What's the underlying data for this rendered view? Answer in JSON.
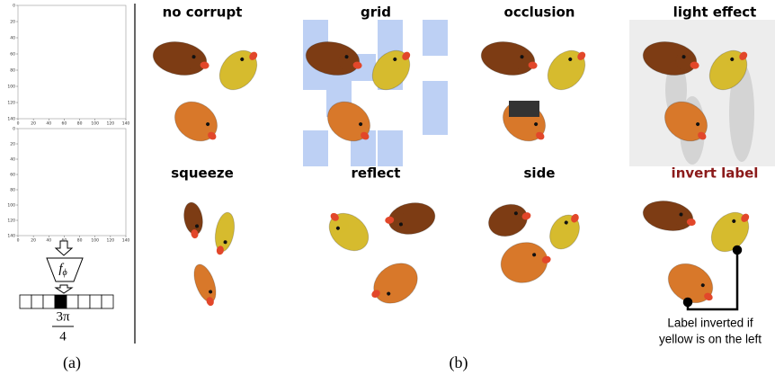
{
  "panel_a": {
    "label": "(a)",
    "plots": [
      {
        "xticks": [
          0,
          20,
          40,
          60,
          80,
          100,
          120,
          140
        ],
        "yticks": [
          0,
          20,
          40,
          60,
          80,
          100,
          120,
          140
        ]
      },
      {
        "xticks": [
          0,
          20,
          40,
          60,
          80,
          100,
          120,
          140
        ],
        "yticks": [
          0,
          20,
          40,
          60,
          80,
          100,
          120,
          140
        ]
      }
    ],
    "encoder": {
      "symbol": "f",
      "subscript": "ϕ"
    },
    "fraction": {
      "numerator": "3π",
      "denominator": "4"
    }
  },
  "panel_b": {
    "label": "(b)",
    "titles": [
      "no corrupt",
      "grid",
      "occlusion",
      "light effect",
      "squeeze",
      "reflect",
      "side",
      "invert label"
    ],
    "highlight_color": "#8b1a1a",
    "highlight_index": 7,
    "annotation": [
      "Label inverted if",
      "yellow is on the left"
    ]
  }
}
